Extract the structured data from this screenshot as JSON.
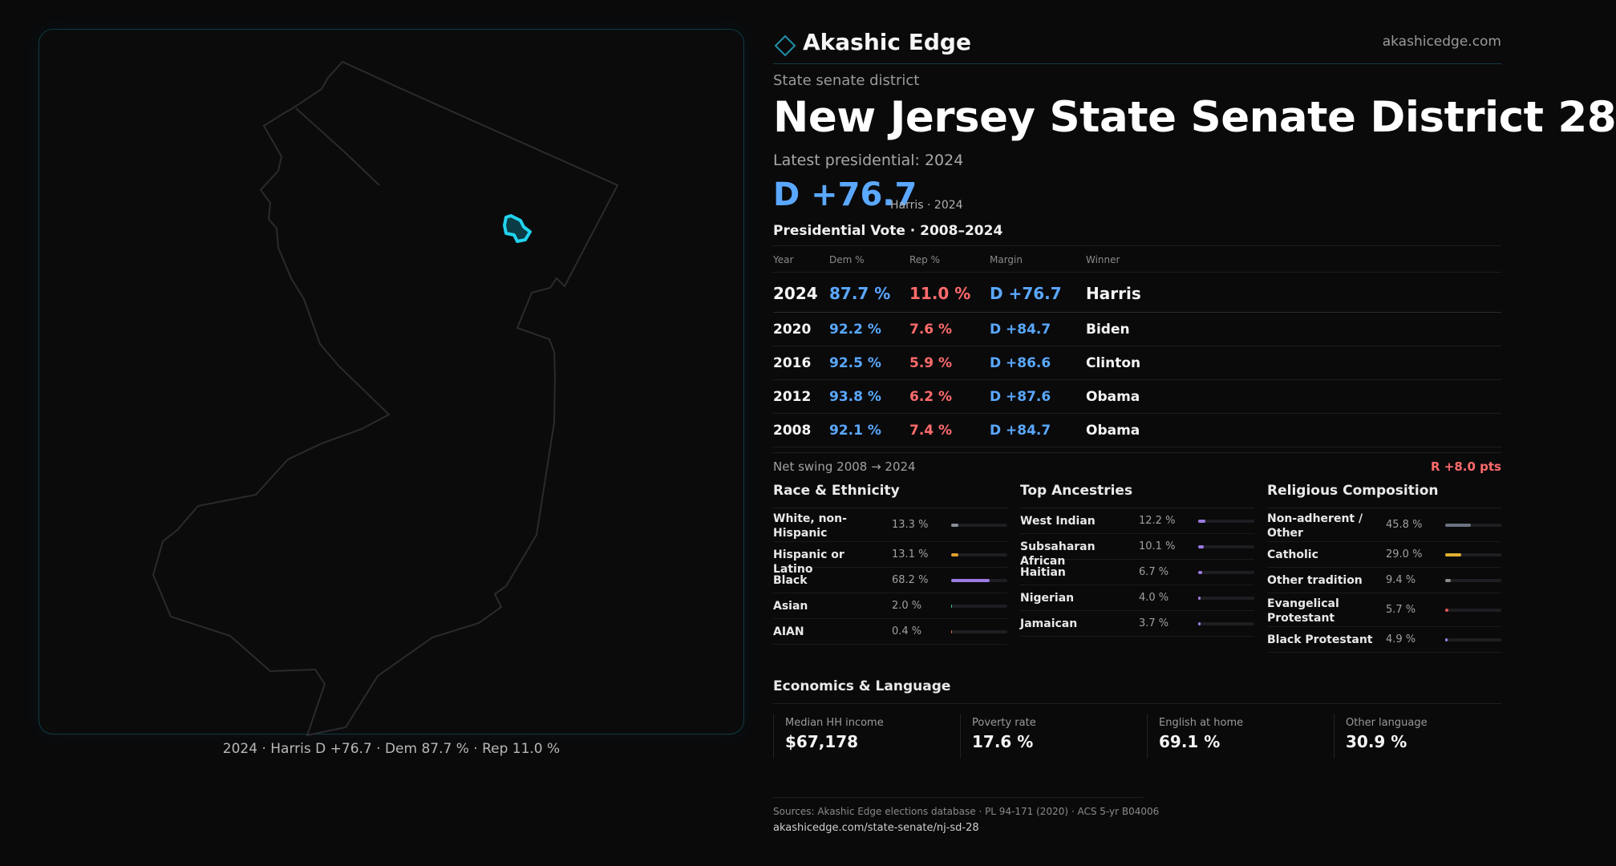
{
  "brand": {
    "name": "Akashic Edge",
    "url": "akashicedge.com",
    "accent": "#1f8fa6"
  },
  "district": {
    "type_label": "State senate district",
    "title": "New Jersey State Senate District 28",
    "latest_label": "Latest presidential: 2024",
    "margin": "D +76.7",
    "margin_note": "Harris · 2024"
  },
  "map": {
    "caption": "2024 · Harris D +76.7 · Dem 87.7 % · Rep 11.0 %",
    "highlight_color": "#22d3ee"
  },
  "presidential": {
    "heading": "Presidential Vote · 2008–2024",
    "headers": {
      "year": "Year",
      "dem": "Dem %",
      "rep": "Rep %",
      "margin": "Margin",
      "winner": "Winner"
    },
    "rows": [
      {
        "year": "2024",
        "dem": "87.7 %",
        "rep": "11.0 %",
        "margin": "D +76.7",
        "winner": "Harris"
      },
      {
        "year": "2020",
        "dem": "92.2 %",
        "rep": "7.6 %",
        "margin": "D +84.7",
        "winner": "Biden"
      },
      {
        "year": "2016",
        "dem": "92.5 %",
        "rep": "5.9 %",
        "margin": "D +86.6",
        "winner": "Clinton"
      },
      {
        "year": "2012",
        "dem": "93.8 %",
        "rep": "6.2 %",
        "margin": "D +87.6",
        "winner": "Obama"
      },
      {
        "year": "2008",
        "dem": "92.1 %",
        "rep": "7.4 %",
        "margin": "D +84.7",
        "winner": "Obama"
      }
    ],
    "swing_label": "Net swing 2008 → 2024",
    "swing_value": "R +8.0 pts"
  },
  "race": {
    "heading": "Race & Ethnicity",
    "items": [
      {
        "label": "White, non-Hispanic",
        "pct": "13.3 %",
        "value": 13.3,
        "color": "#8a8f9a"
      },
      {
        "label": "Hispanic or Latino",
        "pct": "13.1 %",
        "value": 13.1,
        "color": "#e0a030"
      },
      {
        "label": "Black",
        "pct": "68.2 %",
        "value": 68.2,
        "color": "#9b7be0"
      },
      {
        "label": "Asian",
        "pct": "2.0 %",
        "value": 2.0,
        "color": "#3fbf8f"
      },
      {
        "label": "AIAN",
        "pct": "0.4 %",
        "value": 0.4,
        "color": "#c07050"
      }
    ]
  },
  "ancestries": {
    "heading": "Top Ancestries",
    "items": [
      {
        "label": "West Indian",
        "pct": "12.2 %",
        "value": 12.2,
        "color": "#9b7be0"
      },
      {
        "label": "Subsaharan African",
        "pct": "10.1 %",
        "value": 10.1,
        "color": "#9b7be0"
      },
      {
        "label": "Haitian",
        "pct": "6.7 %",
        "value": 6.7,
        "color": "#9b7be0"
      },
      {
        "label": "Nigerian",
        "pct": "4.0 %",
        "value": 4.0,
        "color": "#9b7be0"
      },
      {
        "label": "Jamaican",
        "pct": "3.7 %",
        "value": 3.7,
        "color": "#9b7be0"
      }
    ]
  },
  "religion": {
    "heading": "Religious Composition",
    "items": [
      {
        "label": "Non-adherent / Other",
        "pct": "45.8 %",
        "value": 45.8,
        "color": "#6b7280"
      },
      {
        "label": "Catholic",
        "pct": "29.0 %",
        "value": 29.0,
        "color": "#e0b030"
      },
      {
        "label": "Other tradition",
        "pct": "9.4 %",
        "value": 9.4,
        "color": "#8a8a8a"
      },
      {
        "label": "Evangelical Protestant",
        "pct": "5.7 %",
        "value": 5.7,
        "color": "#e05555"
      },
      {
        "label": "Black Protestant",
        "pct": "4.9 %",
        "value": 4.9,
        "color": "#9b7be0"
      }
    ]
  },
  "economics": {
    "heading": "Economics & Language",
    "cards": [
      {
        "label": "Median HH income",
        "value": "$67,178"
      },
      {
        "label": "Poverty rate",
        "value": "17.6 %"
      },
      {
        "label": "English at home",
        "value": "69.1 %"
      },
      {
        "label": "Other language",
        "value": "30.9 %"
      }
    ]
  },
  "sources": {
    "line1": "Sources: Akashic Edge elections database · PL 94-171 (2020) · ACS 5-yr B04006",
    "line2": "akashicedge.com/state-senate/nj-sd-28"
  }
}
